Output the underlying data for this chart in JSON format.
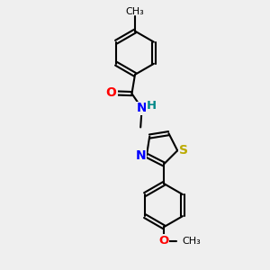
{
  "bg_color": "#efefef",
  "bond_color": "#000000",
  "bond_width": 1.5,
  "atom_colors": {
    "O": "#ff0000",
    "N": "#0000ff",
    "S": "#bbaa00",
    "H": "#008888",
    "C": "#000000"
  },
  "font_size": 9.5
}
